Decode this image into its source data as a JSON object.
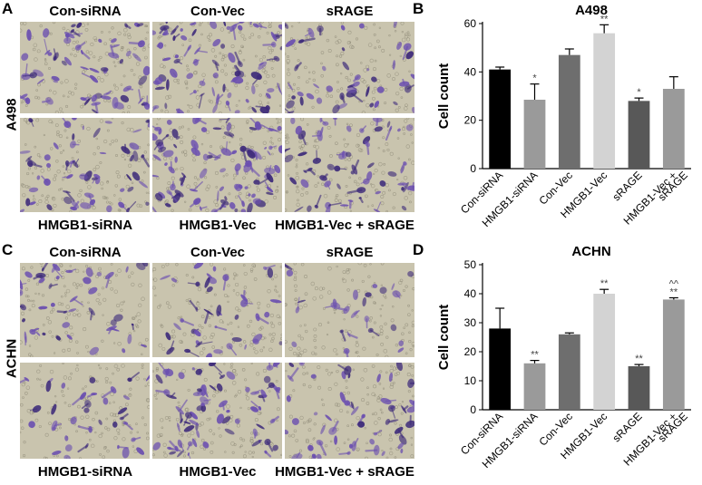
{
  "figure": {
    "panel_letters": [
      "A",
      "B",
      "C",
      "D"
    ],
    "row_labels": {
      "top": "A498",
      "bottom": "ACHN"
    },
    "image_labels": {
      "top_row": [
        "Con-siRNA",
        "Con-Vec",
        "sRAGE"
      ],
      "bottom_row": [
        "HMGB1-siRNA",
        "HMGB1-Vec",
        "HMGB1-Vec + sRAGE"
      ]
    },
    "colors": {
      "background": "#c9c4ae",
      "cell": "#6b4fb0",
      "cell_dark": "#3d2a7a"
    }
  },
  "chart_data": [
    {
      "type": "bar",
      "title": "A498",
      "xlabel": "",
      "ylabel": "Cell count",
      "ylim": [
        0,
        60
      ],
      "yticks": [
        "0",
        "20",
        "40",
        "60"
      ],
      "categories": [
        "Con-siRNA",
        "HMGB1-siRNA",
        "Con-Vec",
        "HMGB1-Vec",
        "sRAGE",
        "HMGB1-Vec + sRAGE"
      ],
      "values": [
        41,
        28.5,
        47,
        56,
        28,
        33
      ],
      "errors": [
        1,
        6.5,
        2.5,
        3.5,
        1.2,
        5
      ],
      "annotations": [
        "",
        "*",
        "",
        "**",
        "*",
        ""
      ],
      "colors": [
        "#000000",
        "#9a9a9a",
        "#6e6e6e",
        "#d3d3d3",
        "#585858",
        "#9a9a9a"
      ]
    },
    {
      "type": "bar",
      "title": "ACHN",
      "xlabel": "",
      "ylabel": "Cell count",
      "ylim": [
        0,
        50
      ],
      "yticks": [
        "0",
        "10",
        "20",
        "30",
        "40",
        "50"
      ],
      "categories": [
        "Con-siRNA",
        "HMGB1-siRNA",
        "Con-Vec",
        "HMGB1-Vec",
        "sRAGE",
        "HMGB1-Vec + sRAGE"
      ],
      "values": [
        28,
        16,
        26,
        40,
        15,
        38
      ],
      "errors": [
        7,
        1,
        0.5,
        1.5,
        0.6,
        0.6
      ],
      "annotations": [
        "",
        "**",
        "",
        "**",
        "**",
        "^^\n**"
      ],
      "colors": [
        "#000000",
        "#9a9a9a",
        "#6e6e6e",
        "#d3d3d3",
        "#585858",
        "#9a9a9a"
      ]
    }
  ]
}
